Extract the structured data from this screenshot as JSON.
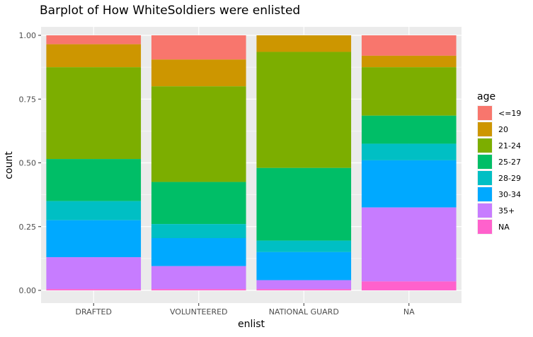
{
  "chart_data": {
    "type": "bar",
    "stacked": true,
    "position": "fill",
    "title": "Barplot of How WhiteSoldiers were enlisted",
    "xlabel": "enlist",
    "ylabel": "count",
    "ylim": [
      0,
      1
    ],
    "yticks": [
      "0.00",
      "0.25",
      "0.50",
      "0.75",
      "1.00"
    ],
    "ytick_values": [
      0,
      0.25,
      0.5,
      0.75,
      1.0
    ],
    "grid": true,
    "categories": [
      "DRAFTED",
      "VOLUNTEERED",
      "NATIONAL GUARD",
      "NA"
    ],
    "legend": {
      "title": "age",
      "placement": "right",
      "entries": [
        "<=19",
        "20",
        "21-24",
        "25-27",
        "28-29",
        "30-34",
        "35+",
        "NA"
      ]
    },
    "colors": [
      "#F8766D",
      "#CD9600",
      "#7CAE00",
      "#00BE67",
      "#00BFC4",
      "#00A9FF",
      "#C77CFF",
      "#FF61CC"
    ],
    "series": [
      {
        "name": "<=19",
        "values": [
          0.035,
          0.095,
          0.0,
          0.08
        ]
      },
      {
        "name": "20",
        "values": [
          0.09,
          0.105,
          0.065,
          0.045
        ]
      },
      {
        "name": "21-24",
        "values": [
          0.36,
          0.375,
          0.455,
          0.19
        ]
      },
      {
        "name": "25-27",
        "values": [
          0.165,
          0.165,
          0.285,
          0.11
        ]
      },
      {
        "name": "28-29",
        "values": [
          0.075,
          0.055,
          0.045,
          0.065
        ]
      },
      {
        "name": "30-34",
        "values": [
          0.145,
          0.11,
          0.11,
          0.185
        ]
      },
      {
        "name": "35+",
        "values": [
          0.125,
          0.09,
          0.035,
          0.29
        ]
      },
      {
        "name": "NA",
        "values": [
          0.005,
          0.005,
          0.005,
          0.035
        ]
      }
    ]
  }
}
